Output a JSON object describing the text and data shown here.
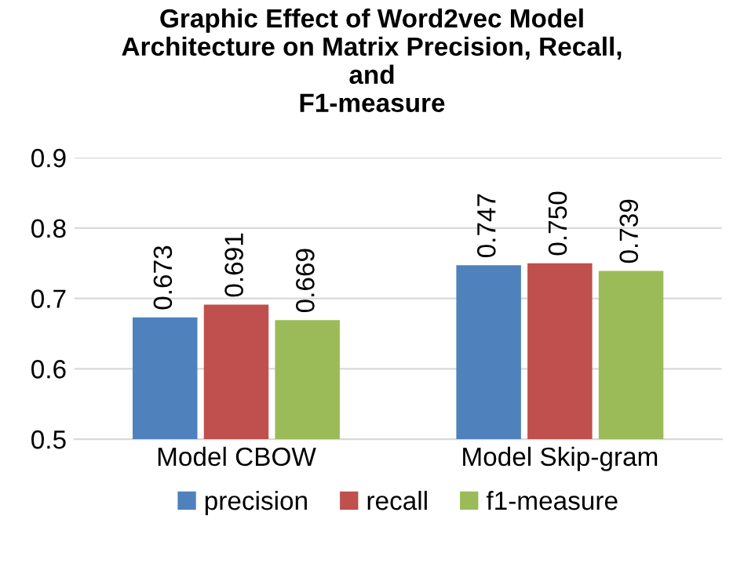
{
  "chart_data": {
    "type": "bar",
    "title": "Graphic Effect of Word2vec Model\nArchitecture on Matrix Precision, Recall,\nand\nF1-measure",
    "categories": [
      "Model CBOW",
      "Model Skip-gram"
    ],
    "series": [
      {
        "name": "precision",
        "color": "#4f81bd",
        "values": [
          0.673,
          0.747
        ],
        "value_labels": [
          "0.673",
          "0.747"
        ]
      },
      {
        "name": "recall",
        "color": "#c0504d",
        "values": [
          0.691,
          0.75
        ],
        "value_labels": [
          "0.691",
          "0.750"
        ]
      },
      {
        "name": "f1-measure",
        "color": "#9bbb59",
        "values": [
          0.669,
          0.739
        ],
        "value_labels": [
          "0.669",
          "0.739"
        ]
      }
    ],
    "ylim": [
      0.5,
      0.9
    ],
    "yticks": [
      0.5,
      0.6,
      0.7,
      0.8,
      0.9
    ],
    "grid": "y",
    "legend": "bottom"
  }
}
